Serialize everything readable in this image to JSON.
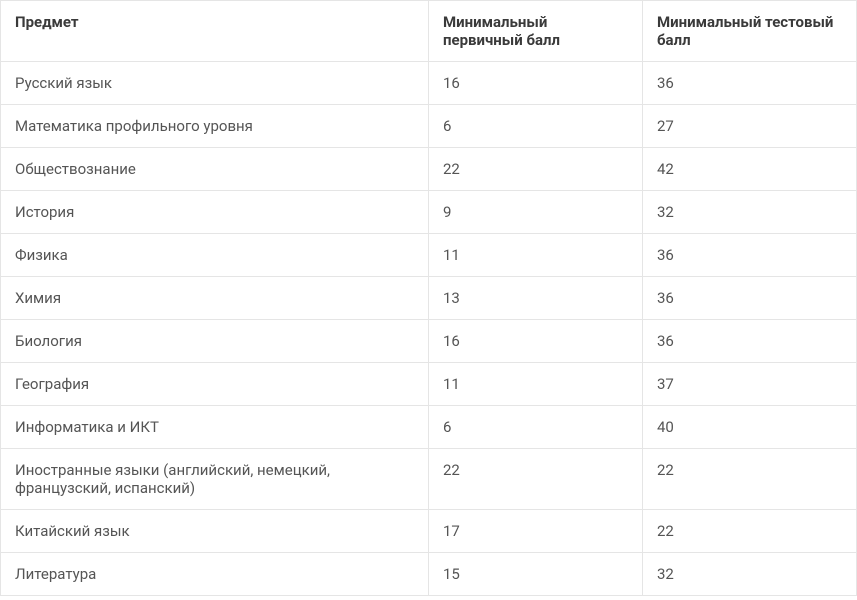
{
  "table": {
    "columns": [
      {
        "label": "Предмет",
        "width": "50%"
      },
      {
        "label": "Минимальный первичный балл",
        "width": "25%"
      },
      {
        "label": "Минимальный тестовый балл",
        "width": "25%"
      }
    ],
    "rows": [
      {
        "subject": "Русский язык",
        "primary": "16",
        "test": "36"
      },
      {
        "subject": "Математика профильного уровня",
        "primary": "6",
        "test": "27"
      },
      {
        "subject": "Обществознание",
        "primary": "22",
        "test": "42"
      },
      {
        "subject": "История",
        "primary": "9",
        "test": "32"
      },
      {
        "subject": "Физика",
        "primary": "11",
        "test": "36"
      },
      {
        "subject": "Химия",
        "primary": "13",
        "test": "36"
      },
      {
        "subject": "Биология",
        "primary": "16",
        "test": "36"
      },
      {
        "subject": "География",
        "primary": "11",
        "test": "37"
      },
      {
        "subject": "Информатика и ИКТ",
        "primary": "6",
        "test": "40"
      },
      {
        "subject": "Иностранные языки (английский, немецкий, французский, испанский)",
        "primary": "22",
        "test": "22"
      },
      {
        "subject": "Китайский язык",
        "primary": "17",
        "test": "22"
      },
      {
        "subject": "Литература",
        "primary": "15",
        "test": "32"
      }
    ],
    "border_color": "#e5e5e5",
    "header_text_color": "#3a3a3a",
    "cell_text_color": "#555555",
    "background_color": "#ffffff",
    "font_size": 15,
    "header_font_weight": 700,
    "cell_padding": "12px 14px"
  }
}
